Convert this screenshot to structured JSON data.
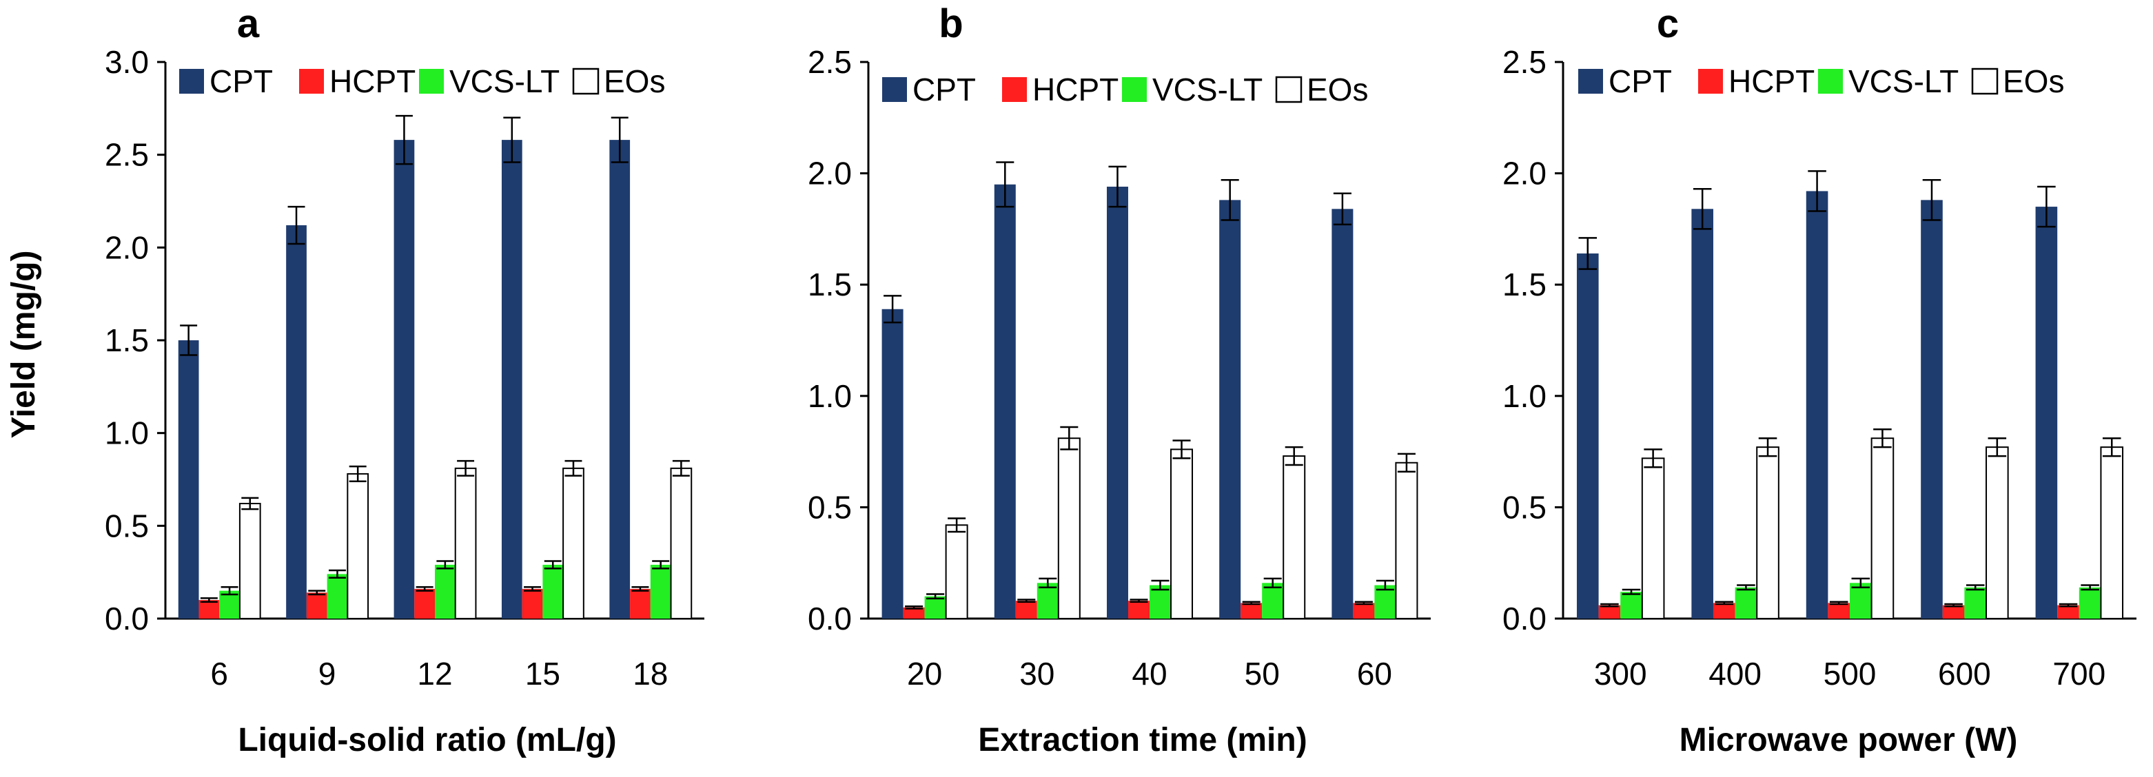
{
  "figure": {
    "ylabel": "Yield (mg/g)",
    "colors": {
      "CPT": "#1f3c6e",
      "HCPT": "#ff1f1f",
      "VCS-LT": "#22ee22",
      "EOs": "#ffffff",
      "axis": "#000000"
    }
  },
  "chart_data": [
    {
      "type": "bar",
      "panel": "a",
      "xlabel": "Liquid-solid ratio (mL/g)",
      "ylabel": "Yield (mg/g)",
      "ylim": [
        0,
        3.0
      ],
      "yticks": [
        "0.0",
        "0.5",
        "1.0",
        "1.5",
        "2.0",
        "2.5",
        "3.0"
      ],
      "categories": [
        "6",
        "9",
        "12",
        "15",
        "18"
      ],
      "series": [
        {
          "name": "CPT",
          "values": [
            1.5,
            2.12,
            2.58,
            2.58,
            2.58
          ],
          "errors": [
            0.08,
            0.1,
            0.13,
            0.12,
            0.12
          ]
        },
        {
          "name": "HCPT",
          "values": [
            0.1,
            0.14,
            0.16,
            0.16,
            0.16
          ],
          "errors": [
            0.01,
            0.01,
            0.01,
            0.01,
            0.01
          ]
        },
        {
          "name": "VCS-LT",
          "values": [
            0.15,
            0.24,
            0.29,
            0.29,
            0.29
          ],
          "errors": [
            0.02,
            0.02,
            0.02,
            0.02,
            0.02
          ]
        },
        {
          "name": "EOs",
          "values": [
            0.62,
            0.78,
            0.81,
            0.81,
            0.81
          ],
          "errors": [
            0.03,
            0.04,
            0.04,
            0.04,
            0.04
          ]
        }
      ]
    },
    {
      "type": "bar",
      "panel": "b",
      "xlabel": "Extraction time (min)",
      "ylabel": "Yield (mg/g)",
      "ylim": [
        0,
        2.5
      ],
      "yticks": [
        "0.0",
        "0.5",
        "1.0",
        "1.5",
        "2.0",
        "2.5"
      ],
      "categories": [
        "20",
        "30",
        "40",
        "50",
        "60"
      ],
      "series": [
        {
          "name": "CPT",
          "values": [
            1.39,
            1.95,
            1.94,
            1.88,
            1.84
          ],
          "errors": [
            0.06,
            0.1,
            0.09,
            0.09,
            0.07
          ]
        },
        {
          "name": "HCPT",
          "values": [
            0.05,
            0.08,
            0.08,
            0.07,
            0.07
          ],
          "errors": [
            0.005,
            0.005,
            0.005,
            0.005,
            0.005
          ]
        },
        {
          "name": "VCS-LT",
          "values": [
            0.1,
            0.16,
            0.15,
            0.16,
            0.15
          ],
          "errors": [
            0.01,
            0.02,
            0.02,
            0.02,
            0.02
          ]
        },
        {
          "name": "EOs",
          "values": [
            0.42,
            0.81,
            0.76,
            0.73,
            0.7
          ],
          "errors": [
            0.03,
            0.05,
            0.04,
            0.04,
            0.04
          ]
        }
      ]
    },
    {
      "type": "bar",
      "panel": "c",
      "xlabel": "Microwave power (W)",
      "ylabel": "Yield (mg/g)",
      "ylim": [
        0,
        2.5
      ],
      "yticks": [
        "0.0",
        "0.5",
        "1.0",
        "1.5",
        "2.0",
        "2.5"
      ],
      "categories": [
        "300",
        "400",
        "500",
        "600",
        "700"
      ],
      "series": [
        {
          "name": "CPT",
          "values": [
            1.64,
            1.84,
            1.92,
            1.88,
            1.85
          ],
          "errors": [
            0.07,
            0.09,
            0.09,
            0.09,
            0.09
          ]
        },
        {
          "name": "HCPT",
          "values": [
            0.06,
            0.07,
            0.07,
            0.06,
            0.06
          ],
          "errors": [
            0.005,
            0.005,
            0.005,
            0.005,
            0.005
          ]
        },
        {
          "name": "VCS-LT",
          "values": [
            0.12,
            0.14,
            0.16,
            0.14,
            0.14
          ],
          "errors": [
            0.01,
            0.01,
            0.02,
            0.01,
            0.01
          ]
        },
        {
          "name": "EOs",
          "values": [
            0.72,
            0.77,
            0.81,
            0.77,
            0.77
          ],
          "errors": [
            0.04,
            0.04,
            0.04,
            0.04,
            0.04
          ]
        }
      ]
    }
  ]
}
